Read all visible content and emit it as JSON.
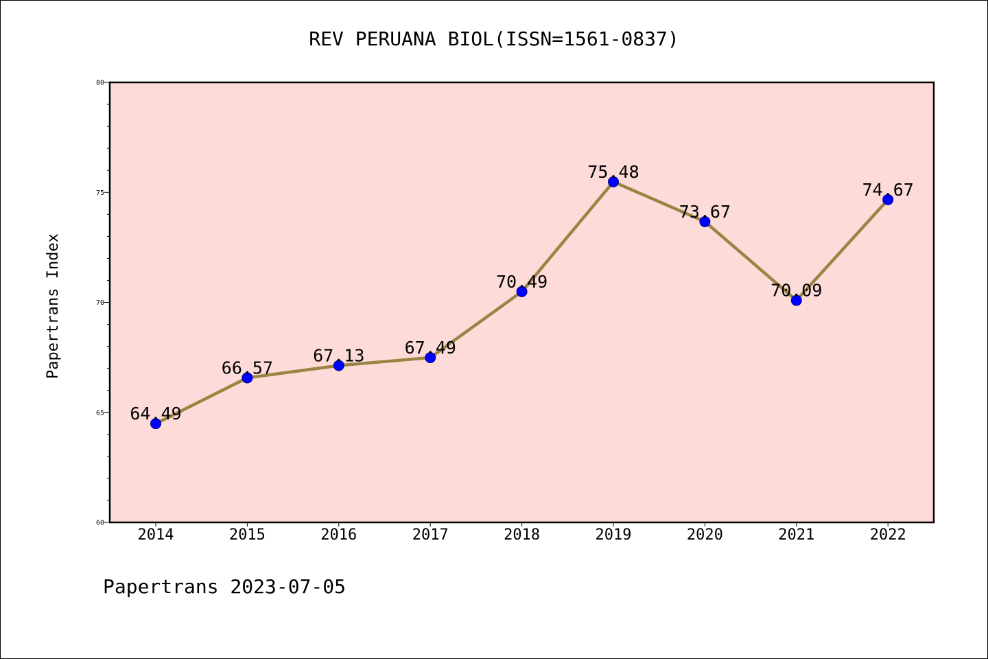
{
  "chart_data": {
    "type": "line",
    "title": "REV PERUANA BIOL(ISSN=1561-0837)",
    "xlabel": "",
    "ylabel": "Papertrans Index",
    "x": [
      "2014",
      "2015",
      "2016",
      "2017",
      "2018",
      "2019",
      "2020",
      "2021",
      "2022"
    ],
    "values": [
      64.49,
      66.57,
      67.13,
      67.49,
      70.49,
      75.48,
      73.67,
      70.09,
      74.67
    ],
    "data_labels": [
      "64.49",
      "66.57",
      "67.13",
      "67.49",
      "70.49",
      "75.48",
      "73.67",
      "70.09",
      "74.67"
    ],
    "ylim": [
      60,
      80
    ],
    "yticks": [
      "60",
      "65",
      "70",
      "75",
      "80"
    ],
    "grid": false,
    "legend": "none",
    "colors": {
      "plot_background": "#fddbd9",
      "line": "#9a8444",
      "marker": "#0000ff"
    }
  },
  "footer": "Papertrans 2023-07-05"
}
